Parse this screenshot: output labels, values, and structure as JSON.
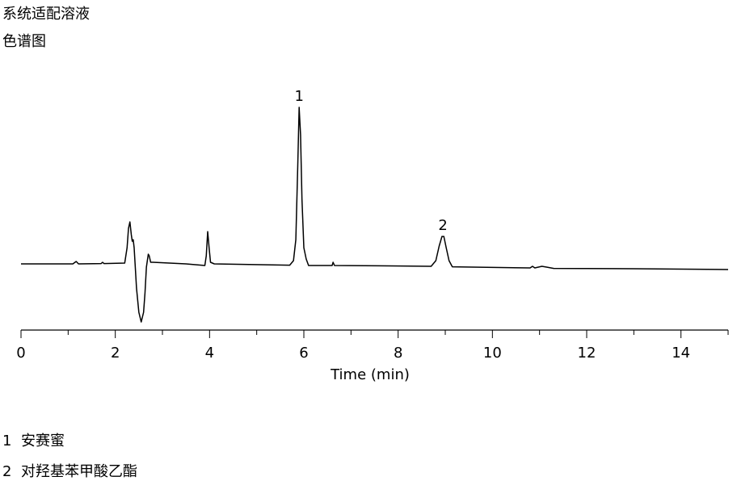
{
  "chart_data": {
    "type": "line",
    "title": "系统适配溶液",
    "subtitle": "色谱图",
    "xlabel": "Time (min)",
    "x": [
      0,
      1.1,
      1.17,
      1.22,
      1.7,
      1.73,
      1.76,
      2.2,
      2.25,
      2.28,
      2.31,
      2.34,
      2.36,
      2.38,
      2.4,
      2.42,
      2.45,
      2.5,
      2.55,
      2.6,
      2.63,
      2.66,
      2.7,
      2.72,
      2.75,
      2.8,
      3.5,
      3.9,
      3.93,
      3.96,
      3.99,
      4.02,
      4.1,
      5.7,
      5.78,
      5.83,
      5.87,
      5.9,
      5.93,
      5.96,
      6.0,
      6.05,
      6.1,
      6.6,
      6.62,
      6.65,
      7.6,
      8.7,
      8.8,
      8.87,
      8.93,
      8.97,
      9.02,
      9.08,
      9.15,
      10.8,
      10.85,
      10.9,
      11.05,
      11.15,
      11.3,
      13,
      15
    ],
    "values": [
      0,
      0,
      1.5,
      0,
      0.2,
      1,
      0.2,
      0.5,
      10,
      22,
      26,
      18,
      14,
      15,
      10,
      0,
      -15,
      -30,
      -36,
      -30,
      -18,
      -2,
      6,
      5,
      1,
      1,
      0,
      -1,
      5,
      20,
      10,
      1,
      0,
      -0.8,
      2,
      15,
      60,
      97,
      80,
      40,
      10,
      3,
      -1,
      -1,
      1,
      -1,
      -1.2,
      -1.5,
      2,
      11,
      17,
      17,
      10,
      2,
      -1.8,
      -2.5,
      -1.5,
      -2.5,
      -1.5,
      -2,
      -2.8,
      -3,
      -3.5
    ],
    "color": "#000000",
    "xlim": [
      0,
      15
    ],
    "xticks": [
      0,
      2,
      4,
      6,
      8,
      10,
      12,
      14
    ],
    "xminor_ticks": [
      1,
      3,
      5,
      7,
      9,
      11,
      13,
      15
    ],
    "ylim": [
      -41,
      100
    ],
    "annotations": [
      {
        "text": "1",
        "x": 5.9,
        "y": 97
      },
      {
        "text": "2",
        "x": 8.95,
        "y": 17
      }
    ]
  },
  "peak_list": [
    {
      "number": "1",
      "name": "安赛蜜"
    },
    {
      "number": "2",
      "name": "对羟基苯甲酸乙酯"
    }
  ]
}
